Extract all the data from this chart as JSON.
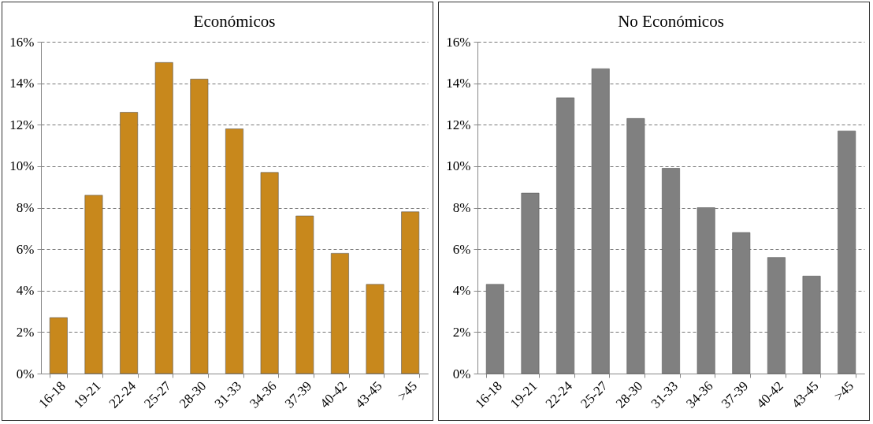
{
  "chart_data": [
    {
      "type": "bar",
      "title": "Económicos",
      "categories": [
        "16-18",
        "19-21",
        "22-24",
        "25-27",
        "28-30",
        "31-33",
        "34-36",
        "37-39",
        "40-42",
        "43-45",
        ">45"
      ],
      "values": [
        2.7,
        8.6,
        12.6,
        15.0,
        14.2,
        11.8,
        9.7,
        7.6,
        5.8,
        4.3,
        7.8
      ],
      "color": "#c8881c",
      "ylim": [
        0,
        16
      ],
      "yticks": [
        {
          "value": 0,
          "label": "0%"
        },
        {
          "value": 2,
          "label": "2%"
        },
        {
          "value": 4,
          "label": "4%"
        },
        {
          "value": 6,
          "label": "6%"
        },
        {
          "value": 8,
          "label": "8%"
        },
        {
          "value": 10,
          "label": "10%"
        },
        {
          "value": 12,
          "label": "12%"
        },
        {
          "value": 14,
          "label": "14%"
        },
        {
          "value": 16,
          "label": "16%"
        }
      ],
      "grid": "y",
      "line_style": "dashed"
    },
    {
      "type": "bar",
      "title": "No Económicos",
      "categories": [
        "16-18",
        "19-21",
        "22-24",
        "25-27",
        "28-30",
        "31-33",
        "34-36",
        "37-39",
        "40-42",
        "43-45",
        ">45"
      ],
      "values": [
        4.3,
        8.7,
        13.3,
        14.7,
        12.3,
        9.9,
        8.0,
        6.8,
        5.6,
        4.7,
        11.7
      ],
      "color": "#808080",
      "ylim": [
        0,
        16
      ],
      "yticks": [
        {
          "value": 0,
          "label": "0%"
        },
        {
          "value": 2,
          "label": "2%"
        },
        {
          "value": 4,
          "label": "4%"
        },
        {
          "value": 6,
          "label": "6%"
        },
        {
          "value": 8,
          "label": "8%"
        },
        {
          "value": 10,
          "label": "10%"
        },
        {
          "value": 12,
          "label": "12%"
        },
        {
          "value": 14,
          "label": "14%"
        },
        {
          "value": 16,
          "label": "16%"
        }
      ],
      "grid": "y",
      "line_style": "dashed"
    }
  ]
}
